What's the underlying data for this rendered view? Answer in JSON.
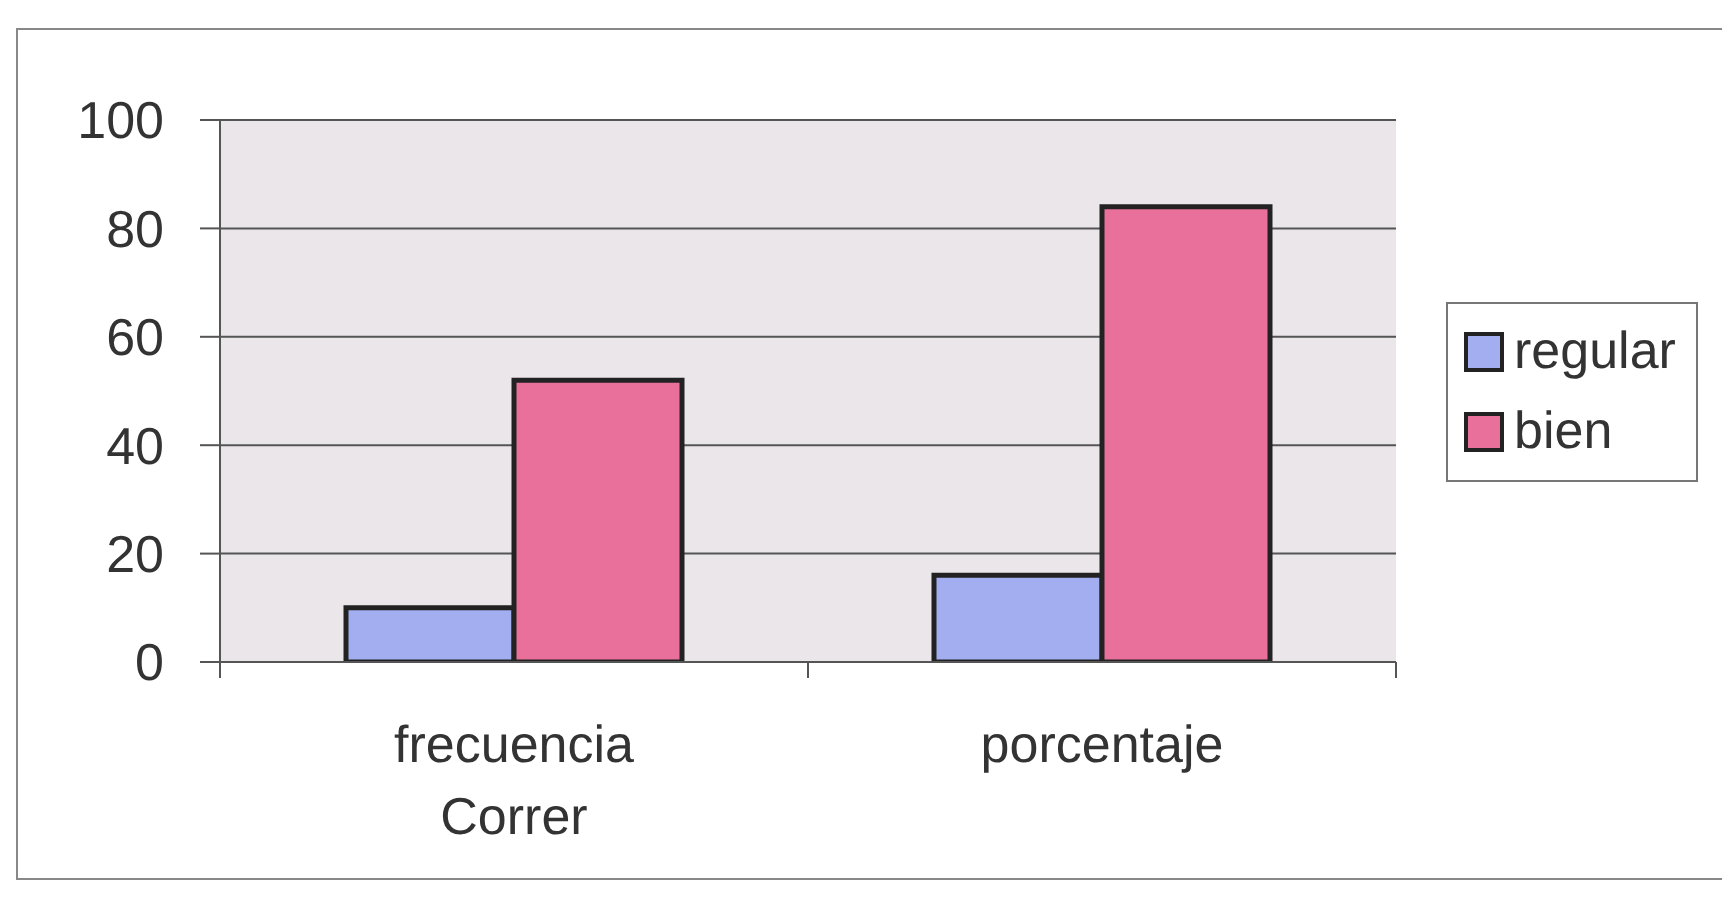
{
  "chart_data": {
    "type": "bar",
    "categories": [
      "frecuencia Correr",
      "porcentaje"
    ],
    "series": [
      {
        "name": "regular",
        "color": "#a3aef0",
        "values": [
          10,
          16
        ]
      },
      {
        "name": "bien",
        "color": "#e8709a",
        "values": [
          52,
          84
        ]
      }
    ],
    "ylim": [
      0,
      100
    ],
    "yticks": [
      0,
      20,
      40,
      60,
      80,
      100
    ],
    "grid": "y",
    "legend": "right"
  }
}
